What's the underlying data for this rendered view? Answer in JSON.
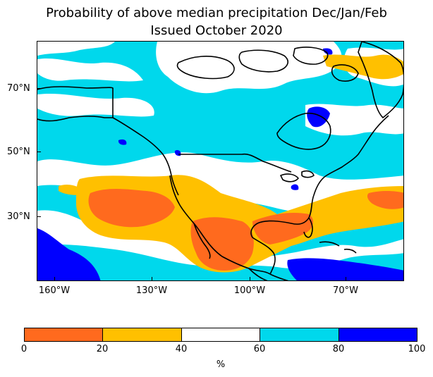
{
  "title": {
    "line1": "Probability of above median precipitation Dec/Jan/Feb",
    "line2": "Issued October 2020"
  },
  "axes": {
    "latitude_labels": [
      "70°N",
      "50°N",
      "30°N"
    ],
    "longitude_labels": [
      "160°W",
      "130°W",
      "100°W",
      "70°W"
    ]
  },
  "colorbar": {
    "tick_labels": [
      "0",
      "20",
      "40",
      "60",
      "80",
      "100"
    ],
    "unit": "%",
    "bins": [
      {
        "range": "0-20",
        "color": "#ff6a1e"
      },
      {
        "range": "20-40",
        "color": "#ffc000"
      },
      {
        "range": "40-60",
        "color": "#ffffff"
      },
      {
        "range": "60-80",
        "color": "#00d8ec"
      },
      {
        "range": "80-100",
        "color": "#0000ff"
      }
    ]
  },
  "map": {
    "region": "North America",
    "field": "probability of above median precipitation",
    "outline_color": "#000000"
  }
}
